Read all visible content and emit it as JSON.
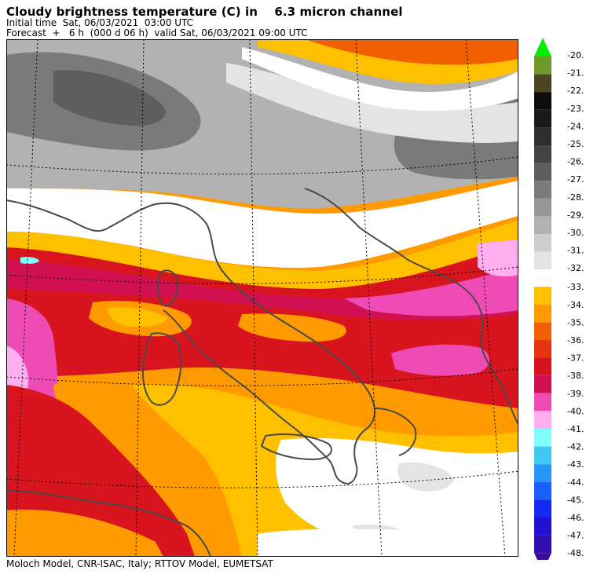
{
  "header": {
    "title": "Cloudy brightness temperature (C) in    6.3 micron channel",
    "initial_time": "Initial time  Sat, 06/03/2021  03:00 UTC",
    "forecast": "Forecast  +   6 h  (000 d 06 h)  valid Sat, 06/03/2021 09:00 UTC"
  },
  "footer": {
    "credit": "Moloch Model, CNR-ISAC, Italy; RTTOV Model, EUMETSAT"
  },
  "legend": {
    "upper": [
      {
        "label": "-20.",
        "color": "#00ee00"
      },
      {
        "label": "-21.",
        "color": "#6e9a2a"
      },
      {
        "label": "-22.",
        "color": "#4a4424"
      },
      {
        "label": "-23.",
        "color": "#0c0c0c"
      },
      {
        "label": "-24.",
        "color": "#1a1a1a"
      },
      {
        "label": "-25.",
        "color": "#2e2e2e"
      },
      {
        "label": "-26.",
        "color": "#444444"
      },
      {
        "label": "-27.",
        "color": "#5e5e5e"
      },
      {
        "label": "-28.",
        "color": "#7a7a7a"
      },
      {
        "label": "-29.",
        "color": "#969696"
      },
      {
        "label": "-30.",
        "color": "#b2b2b2"
      },
      {
        "label": "-31.",
        "color": "#cecece"
      },
      {
        "label": "-32.",
        "color": "#e4e4e4"
      }
    ],
    "lower": [
      {
        "label": "-33.",
        "color": "#ffc000"
      },
      {
        "label": "-34.",
        "color": "#ff9a00"
      },
      {
        "label": "-35.",
        "color": "#f06000"
      },
      {
        "label": "-36.",
        "color": "#e43414"
      },
      {
        "label": "-37.",
        "color": "#d8141e"
      },
      {
        "label": "-38.",
        "color": "#d01050"
      },
      {
        "label": "-39.",
        "color": "#ee4cb4"
      },
      {
        "label": "-40.",
        "color": "#ffaef0"
      },
      {
        "label": "-41.",
        "color": "#80ffff"
      },
      {
        "label": "-42.",
        "color": "#40c8f0"
      },
      {
        "label": "-43.",
        "color": "#2896f8"
      },
      {
        "label": "-44.",
        "color": "#1a60ff"
      },
      {
        "label": "-45.",
        "color": "#1428f0"
      },
      {
        "label": "-46.",
        "color": "#2010d0"
      },
      {
        "label": "-47.",
        "color": "#3010b0"
      },
      {
        "label": "-48.",
        "color": "#3a0aa0"
      }
    ]
  },
  "map_colors": {
    "white": "#ffffff",
    "grey_light": "#e4e4e4",
    "grey_mid": "#b2b2b2",
    "grey_dark": "#7a7a7a",
    "grey_darker": "#5e5e5e",
    "yellow": "#ffc000",
    "orange": "#ff9a00",
    "orange_dark": "#f06000",
    "red": "#d8141e",
    "red_pink": "#d01050",
    "magenta": "#ee4cb4",
    "pink": "#ffaef0",
    "cyan": "#80ffff",
    "coast": "#4a4a4a"
  }
}
